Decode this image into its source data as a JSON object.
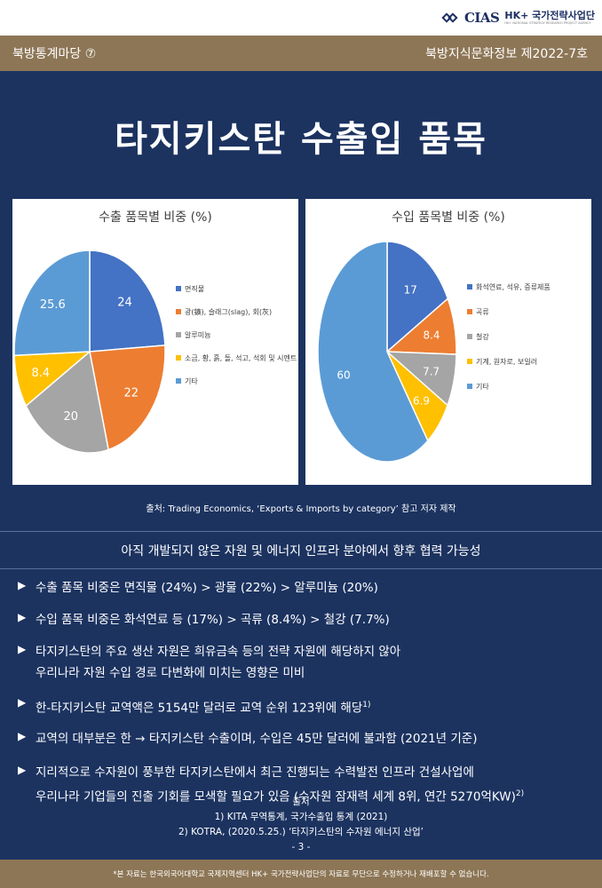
{
  "header": {
    "logo_text": "CIAS",
    "logo_hk": "HK+ 국가전략사업단",
    "logo_sub": "HK+ NATIONAL STRATEGY RESEARCH PROJECT AGENCY"
  },
  "band": {
    "left": "북방통계마당 ⑦",
    "right": "북방지식문화정보 제2022-7호"
  },
  "title": "타지키스탄 수출입 품목",
  "chart_data": [
    {
      "type": "pie",
      "title": "수출 품목별 비중 (%)",
      "categories": [
        "면직물",
        "광(鑛), 슬래그(slag), 회(灰)",
        "알루미늄",
        "소금, 황, 흙, 돌, 석고, 석회 및 시멘트",
        "기타"
      ],
      "values": [
        24,
        22,
        20,
        8.4,
        25.6
      ],
      "labels": [
        "24",
        "22",
        "20",
        "8.4",
        "25.6"
      ],
      "colors": [
        "#4472c4",
        "#ed7d31",
        "#a5a5a5",
        "#ffc000",
        "#5b9bd5"
      ],
      "legend": "right"
    },
    {
      "type": "pie",
      "title": "수입 품목별 비중 (%)",
      "categories": [
        "화석연료, 석유, 증류제품",
        "곡류",
        "철강",
        "기계, 원자로, 보일러",
        "기타"
      ],
      "values": [
        17,
        8.4,
        7.7,
        6.9,
        60
      ],
      "labels": [
        "17",
        "8.4",
        "7.7",
        "6.9",
        "60"
      ],
      "colors": [
        "#4472c4",
        "#ed7d31",
        "#a5a5a5",
        "#ffc000",
        "#5b9bd5"
      ],
      "legend": "right"
    }
  ],
  "source": "출처: Trading Economics, ‘Exports & Imports by category’ 참고 저자 제작",
  "subtitle": "아직 개발되지 않은 자원 및 에너지 인프라 분야에서 향후 협력 가능성",
  "bullets": [
    {
      "lines": [
        "수출 품목 비중은 면직물 (24%) > 광물 (22%) > 알루미늄 (20%)"
      ],
      "sup": ""
    },
    {
      "lines": [
        "수입 품목 비중은 화석연료 등 (17%) > 곡류 (8.4%) > 철강 (7.7%)"
      ],
      "sup": ""
    },
    {
      "lines": [
        "타지키스탄의 주요 생산 자원은 희유금속 등의 전략 자원에 해당하지 않아",
        "우리나라 자원 수입 경로 다변화에 미치는 영향은 미비"
      ],
      "sup": ""
    },
    {
      "lines": [
        "한-타지키스탄 교역액은 5154만 달러로 교역 순위 123위에 해당"
      ],
      "sup": "1)"
    },
    {
      "lines": [
        "교역의 대부분은 한 → 타지키스탄 수출이며, 수입은 45만 달러에 불과함 (2021년 기준)"
      ],
      "sup": ""
    },
    {
      "lines": [
        "지리적으로 수자원이 풍부한 타지키스탄에서 최근 진행되는 수력발전 인프라 건설사업에",
        "우리나라 기업들의 진출 기회를 모색할 필요가 있음 (수자원 잠재력 세계 8위, 연간 5270억KW)"
      ],
      "sup": "2)"
    }
  ],
  "refs": {
    "heading": "출처",
    "items": [
      "1) KITA 무역통계, 국가수출입 통계 (2021)",
      "2) KOTRA, (2020.5.25.) ‘타지키스탄의 수자원 에너지 산업’"
    ],
    "page": "-  3  -"
  },
  "footer": "*본 자료는 한국외국어대학교 국제지역센터 HK+ 국가전략사업단의 자료로 무단으로 수정하거나 재배포할 수 없습니다."
}
